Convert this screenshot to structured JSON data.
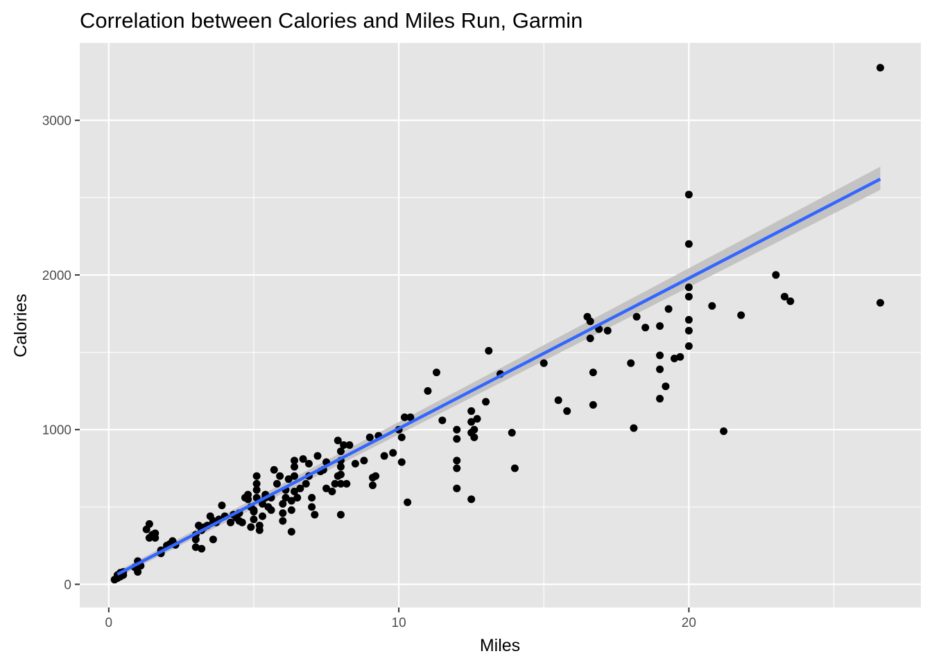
{
  "chart_data": {
    "type": "scatter",
    "title": "Correlation between Calories and Miles Run, Garmin",
    "xlabel": "Miles",
    "ylabel": "Calories",
    "xlim": [
      -1,
      28
    ],
    "ylim": [
      -150,
      3500
    ],
    "x_ticks": [
      0,
      10,
      20
    ],
    "x_minor_ticks": [
      5,
      15,
      25
    ],
    "y_ticks": [
      0,
      1000,
      2000,
      3000
    ],
    "y_minor_ticks": [
      500,
      1500,
      2500
    ],
    "grid": true,
    "colors": {
      "panel": "#e5e5e5",
      "grid": "#ffffff",
      "point": "#000000",
      "trend": "#3366ff",
      "ribbon": "#bdbdbd"
    },
    "trendline": {
      "method": "linear",
      "x": [
        0.3,
        26.6
      ],
      "y": [
        65,
        2620
      ],
      "ribbon_lower": [
        45,
        2550
      ],
      "ribbon_upper": [
        85,
        2700
      ]
    },
    "points": [
      [
        0.2,
        30
      ],
      [
        0.3,
        40
      ],
      [
        0.3,
        60
      ],
      [
        0.4,
        50
      ],
      [
        0.4,
        75
      ],
      [
        0.5,
        80
      ],
      [
        0.5,
        60
      ],
      [
        1.0,
        80
      ],
      [
        1.0,
        150
      ],
      [
        0.9,
        110
      ],
      [
        1.1,
        120
      ],
      [
        1.4,
        390
      ],
      [
        1.3,
        355
      ],
      [
        1.4,
        300
      ],
      [
        1.5,
        320
      ],
      [
        1.6,
        300
      ],
      [
        1.6,
        330
      ],
      [
        1.8,
        200
      ],
      [
        1.8,
        220
      ],
      [
        2.0,
        250
      ],
      [
        2.1,
        260
      ],
      [
        2.2,
        280
      ],
      [
        2.3,
        255
      ],
      [
        3.0,
        240
      ],
      [
        3.0,
        290
      ],
      [
        3.0,
        320
      ],
      [
        3.1,
        380
      ],
      [
        3.2,
        230
      ],
      [
        3.2,
        350
      ],
      [
        3.3,
        370
      ],
      [
        3.4,
        380
      ],
      [
        3.5,
        440
      ],
      [
        3.6,
        290
      ],
      [
        3.6,
        410
      ],
      [
        3.7,
        400
      ],
      [
        3.8,
        420
      ],
      [
        3.9,
        510
      ],
      [
        4.0,
        440
      ],
      [
        4.2,
        400
      ],
      [
        4.3,
        450
      ],
      [
        4.4,
        430
      ],
      [
        4.5,
        410
      ],
      [
        4.5,
        460
      ],
      [
        4.6,
        400
      ],
      [
        4.7,
        560
      ],
      [
        4.8,
        550
      ],
      [
        4.8,
        580
      ],
      [
        4.9,
        500
      ],
      [
        4.9,
        370
      ],
      [
        5.0,
        470
      ],
      [
        5.0,
        420
      ],
      [
        5.0,
        480
      ],
      [
        5.1,
        560
      ],
      [
        5.1,
        610
      ],
      [
        5.1,
        650
      ],
      [
        5.1,
        700
      ],
      [
        5.2,
        350
      ],
      [
        5.2,
        380
      ],
      [
        5.3,
        440
      ],
      [
        5.3,
        520
      ],
      [
        5.4,
        580
      ],
      [
        5.4,
        560
      ],
      [
        5.5,
        500
      ],
      [
        5.6,
        480
      ],
      [
        5.6,
        560
      ],
      [
        5.7,
        740
      ],
      [
        5.8,
        650
      ],
      [
        5.9,
        700
      ],
      [
        6.0,
        410
      ],
      [
        6.0,
        460
      ],
      [
        6.0,
        520
      ],
      [
        6.1,
        560
      ],
      [
        6.1,
        610
      ],
      [
        6.2,
        680
      ],
      [
        6.3,
        340
      ],
      [
        6.3,
        480
      ],
      [
        6.3,
        540
      ],
      [
        6.4,
        600
      ],
      [
        6.4,
        700
      ],
      [
        6.4,
        760
      ],
      [
        6.4,
        800
      ],
      [
        6.5,
        560
      ],
      [
        6.6,
        620
      ],
      [
        6.7,
        810
      ],
      [
        6.8,
        650
      ],
      [
        6.9,
        700
      ],
      [
        6.9,
        780
      ],
      [
        7.0,
        500
      ],
      [
        7.0,
        560
      ],
      [
        7.1,
        450
      ],
      [
        7.2,
        830
      ],
      [
        7.3,
        730
      ],
      [
        7.4,
        740
      ],
      [
        7.5,
        620
      ],
      [
        7.5,
        790
      ],
      [
        7.7,
        600
      ],
      [
        7.8,
        650
      ],
      [
        7.9,
        700
      ],
      [
        7.9,
        930
      ],
      [
        8.0,
        860
      ],
      [
        8.0,
        760
      ],
      [
        8.0,
        800
      ],
      [
        8.0,
        710
      ],
      [
        8.0,
        650
      ],
      [
        8.0,
        450
      ],
      [
        8.1,
        900
      ],
      [
        8.2,
        650
      ],
      [
        8.3,
        900
      ],
      [
        8.5,
        780
      ],
      [
        8.8,
        800
      ],
      [
        9.0,
        950
      ],
      [
        9.1,
        640
      ],
      [
        9.1,
        690
      ],
      [
        9.2,
        700
      ],
      [
        9.3,
        960
      ],
      [
        9.5,
        830
      ],
      [
        9.8,
        850
      ],
      [
        10.0,
        1000
      ],
      [
        10.1,
        950
      ],
      [
        10.1,
        790
      ],
      [
        10.2,
        1080
      ],
      [
        10.3,
        530
      ],
      [
        10.4,
        1080
      ],
      [
        11.0,
        1250
      ],
      [
        11.3,
        1370
      ],
      [
        11.5,
        1060
      ],
      [
        12.0,
        940
      ],
      [
        12.0,
        620
      ],
      [
        12.0,
        1000
      ],
      [
        12.0,
        800
      ],
      [
        12.0,
        750
      ],
      [
        12.5,
        550
      ],
      [
        12.5,
        1120
      ],
      [
        12.5,
        1050
      ],
      [
        12.5,
        980
      ],
      [
        12.6,
        950
      ],
      [
        12.6,
        1000
      ],
      [
        12.7,
        1070
      ],
      [
        13.0,
        1180
      ],
      [
        13.1,
        1510
      ],
      [
        13.5,
        1360
      ],
      [
        13.9,
        980
      ],
      [
        14.0,
        750
      ],
      [
        15.0,
        1430
      ],
      [
        15.5,
        1190
      ],
      [
        15.8,
        1120
      ],
      [
        16.5,
        1730
      ],
      [
        16.6,
        1700
      ],
      [
        16.6,
        1590
      ],
      [
        16.7,
        1160
      ],
      [
        16.7,
        1370
      ],
      [
        16.9,
        1650
      ],
      [
        17.2,
        1640
      ],
      [
        18.0,
        1430
      ],
      [
        18.1,
        1010
      ],
      [
        18.2,
        1730
      ],
      [
        18.5,
        1660
      ],
      [
        19.0,
        1200
      ],
      [
        19.0,
        1480
      ],
      [
        19.0,
        1670
      ],
      [
        19.0,
        1390
      ],
      [
        19.2,
        1280
      ],
      [
        19.3,
        1780
      ],
      [
        19.5,
        1460
      ],
      [
        19.7,
        1470
      ],
      [
        20.8,
        1800
      ],
      [
        21.2,
        990
      ],
      [
        21.8,
        1740
      ],
      [
        23.0,
        2000
      ],
      [
        23.3,
        1860
      ],
      [
        23.5,
        1830
      ],
      [
        20.0,
        2520
      ],
      [
        20.0,
        2200
      ],
      [
        20.0,
        1920
      ],
      [
        20.0,
        1860
      ],
      [
        20.0,
        1710
      ],
      [
        20.0,
        1640
      ],
      [
        20.0,
        1540
      ],
      [
        26.6,
        3340
      ],
      [
        26.6,
        1820
      ]
    ]
  }
}
